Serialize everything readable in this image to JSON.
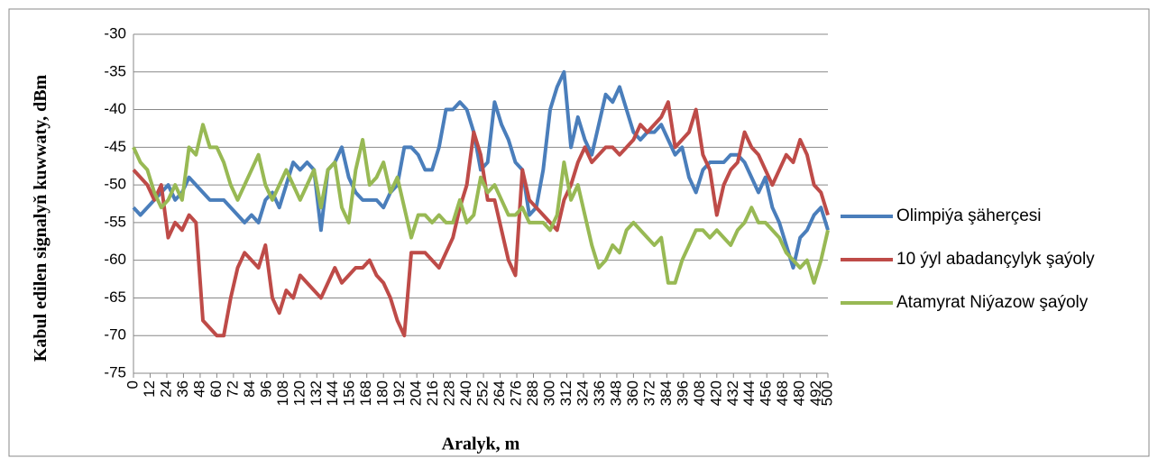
{
  "chart_data": {
    "type": "line",
    "ylabel": "Kabul edilen signalyň kuwwaty, dBm",
    "xlabel": "Aralyk, m",
    "ylim": [
      -75,
      -30
    ],
    "yticks": [
      -75,
      -70,
      -65,
      -60,
      -55,
      -50,
      -45,
      -40,
      -35,
      -30
    ],
    "xlim": [
      0,
      500
    ],
    "xticks": [
      0,
      12,
      24,
      36,
      48,
      60,
      72,
      84,
      96,
      108,
      120,
      132,
      144,
      156,
      168,
      180,
      192,
      204,
      216,
      228,
      240,
      252,
      264,
      276,
      288,
      300,
      312,
      324,
      336,
      348,
      360,
      372,
      384,
      396,
      408,
      420,
      432,
      444,
      456,
      468,
      480,
      492,
      500
    ],
    "grid": true,
    "legend": "right",
    "x": [
      0,
      5,
      10,
      15,
      20,
      25,
      30,
      35,
      40,
      45,
      50,
      55,
      60,
      65,
      70,
      75,
      80,
      85,
      90,
      95,
      100,
      105,
      110,
      115,
      120,
      125,
      130,
      135,
      140,
      145,
      150,
      155,
      160,
      165,
      170,
      175,
      180,
      185,
      190,
      195,
      200,
      205,
      210,
      215,
      220,
      225,
      230,
      235,
      240,
      245,
      250,
      255,
      260,
      265,
      270,
      275,
      280,
      285,
      290,
      295,
      300,
      305,
      310,
      315,
      320,
      325,
      330,
      335,
      340,
      345,
      350,
      355,
      360,
      365,
      370,
      375,
      380,
      385,
      390,
      395,
      400,
      405,
      410,
      415,
      420,
      425,
      430,
      435,
      440,
      445,
      450,
      455,
      460,
      465,
      470,
      475,
      480,
      485,
      490,
      495,
      500
    ],
    "series": [
      {
        "name": "Olimpiýa şäherçesi",
        "color": "#4a7ebb",
        "values": [
          -53,
          -54,
          -53,
          -52,
          -51,
          -50,
          -52,
          -51,
          -49,
          -50,
          -51,
          -52,
          -52,
          -52,
          -53,
          -54,
          -55,
          -54,
          -55,
          -52,
          -51,
          -53,
          -50,
          -47,
          -48,
          -47,
          -48,
          -56,
          -48,
          -47,
          -45,
          -49,
          -51,
          -52,
          -52,
          -52,
          -53,
          -51,
          -50,
          -45,
          -45,
          -46,
          -48,
          -48,
          -45,
          -40,
          -40,
          -39,
          -40,
          -43,
          -48,
          -47,
          -39,
          -42,
          -44,
          -47,
          -48,
          -54,
          -53,
          -48,
          -40,
          -37,
          -35,
          -45,
          -41,
          -44,
          -46,
          -42,
          -38,
          -39,
          -37,
          -40,
          -43,
          -44,
          -43,
          -43,
          -42,
          -44,
          -46,
          -45,
          -49,
          -51,
          -48,
          -47,
          -47,
          -47,
          -46,
          -46,
          -47,
          -49,
          -51,
          -49,
          -53,
          -55,
          -58,
          -61,
          -57,
          -56,
          -54,
          -53,
          -56
        ]
      },
      {
        "name": "10 ýyl abadançylyk şaýoly",
        "color": "#be4b48",
        "values": [
          -48,
          -49,
          -50,
          -52,
          -50,
          -57,
          -55,
          -56,
          -54,
          -55,
          -68,
          -69,
          -70,
          -70,
          -65,
          -61,
          -59,
          -60,
          -61,
          -58,
          -65,
          -67,
          -64,
          -65,
          -62,
          -63,
          -64,
          -65,
          -63,
          -61,
          -63,
          -62,
          -61,
          -61,
          -60,
          -62,
          -63,
          -65,
          -68,
          -70,
          -59,
          -59,
          -59,
          -60,
          -61,
          -59,
          -57,
          -53,
          -50,
          -43,
          -46,
          -52,
          -52,
          -56,
          -60,
          -62,
          -48,
          -52,
          -53,
          -54,
          -55,
          -56,
          -52,
          -50,
          -47,
          -45,
          -47,
          -46,
          -45,
          -45,
          -46,
          -45,
          -44,
          -42,
          -43,
          -42,
          -41,
          -39,
          -45,
          -44,
          -43,
          -40,
          -46,
          -48,
          -54,
          -50,
          -48,
          -47,
          -43,
          -45,
          -46,
          -48,
          -50,
          -48,
          -46,
          -47,
          -44,
          -46,
          -50,
          -51,
          -54
        ]
      },
      {
        "name": "Atamyrat Niýazow şaýoly",
        "color": "#98b954",
        "values": [
          -45,
          -47,
          -48,
          -51,
          -53,
          -52,
          -50,
          -52,
          -45,
          -46,
          -42,
          -45,
          -45,
          -47,
          -50,
          -52,
          -50,
          -48,
          -46,
          -50,
          -52,
          -50,
          -48,
          -50,
          -52,
          -50,
          -48,
          -53,
          -48,
          -47,
          -53,
          -55,
          -48,
          -44,
          -50,
          -49,
          -47,
          -51,
          -49,
          -53,
          -57,
          -54,
          -54,
          -55,
          -54,
          -55,
          -55,
          -52,
          -55,
          -54,
          -49,
          -51,
          -50,
          -52,
          -54,
          -54,
          -53,
          -55,
          -55,
          -55,
          -56,
          -54,
          -47,
          -52,
          -50,
          -54,
          -58,
          -61,
          -60,
          -58,
          -59,
          -56,
          -55,
          -56,
          -57,
          -58,
          -57,
          -63,
          -63,
          -60,
          -58,
          -56,
          -56,
          -57,
          -56,
          -57,
          -58,
          -56,
          -55,
          -53,
          -55,
          -55,
          -56,
          -57,
          -59,
          -60,
          -61,
          -60,
          -63,
          -60,
          -56
        ]
      }
    ]
  }
}
